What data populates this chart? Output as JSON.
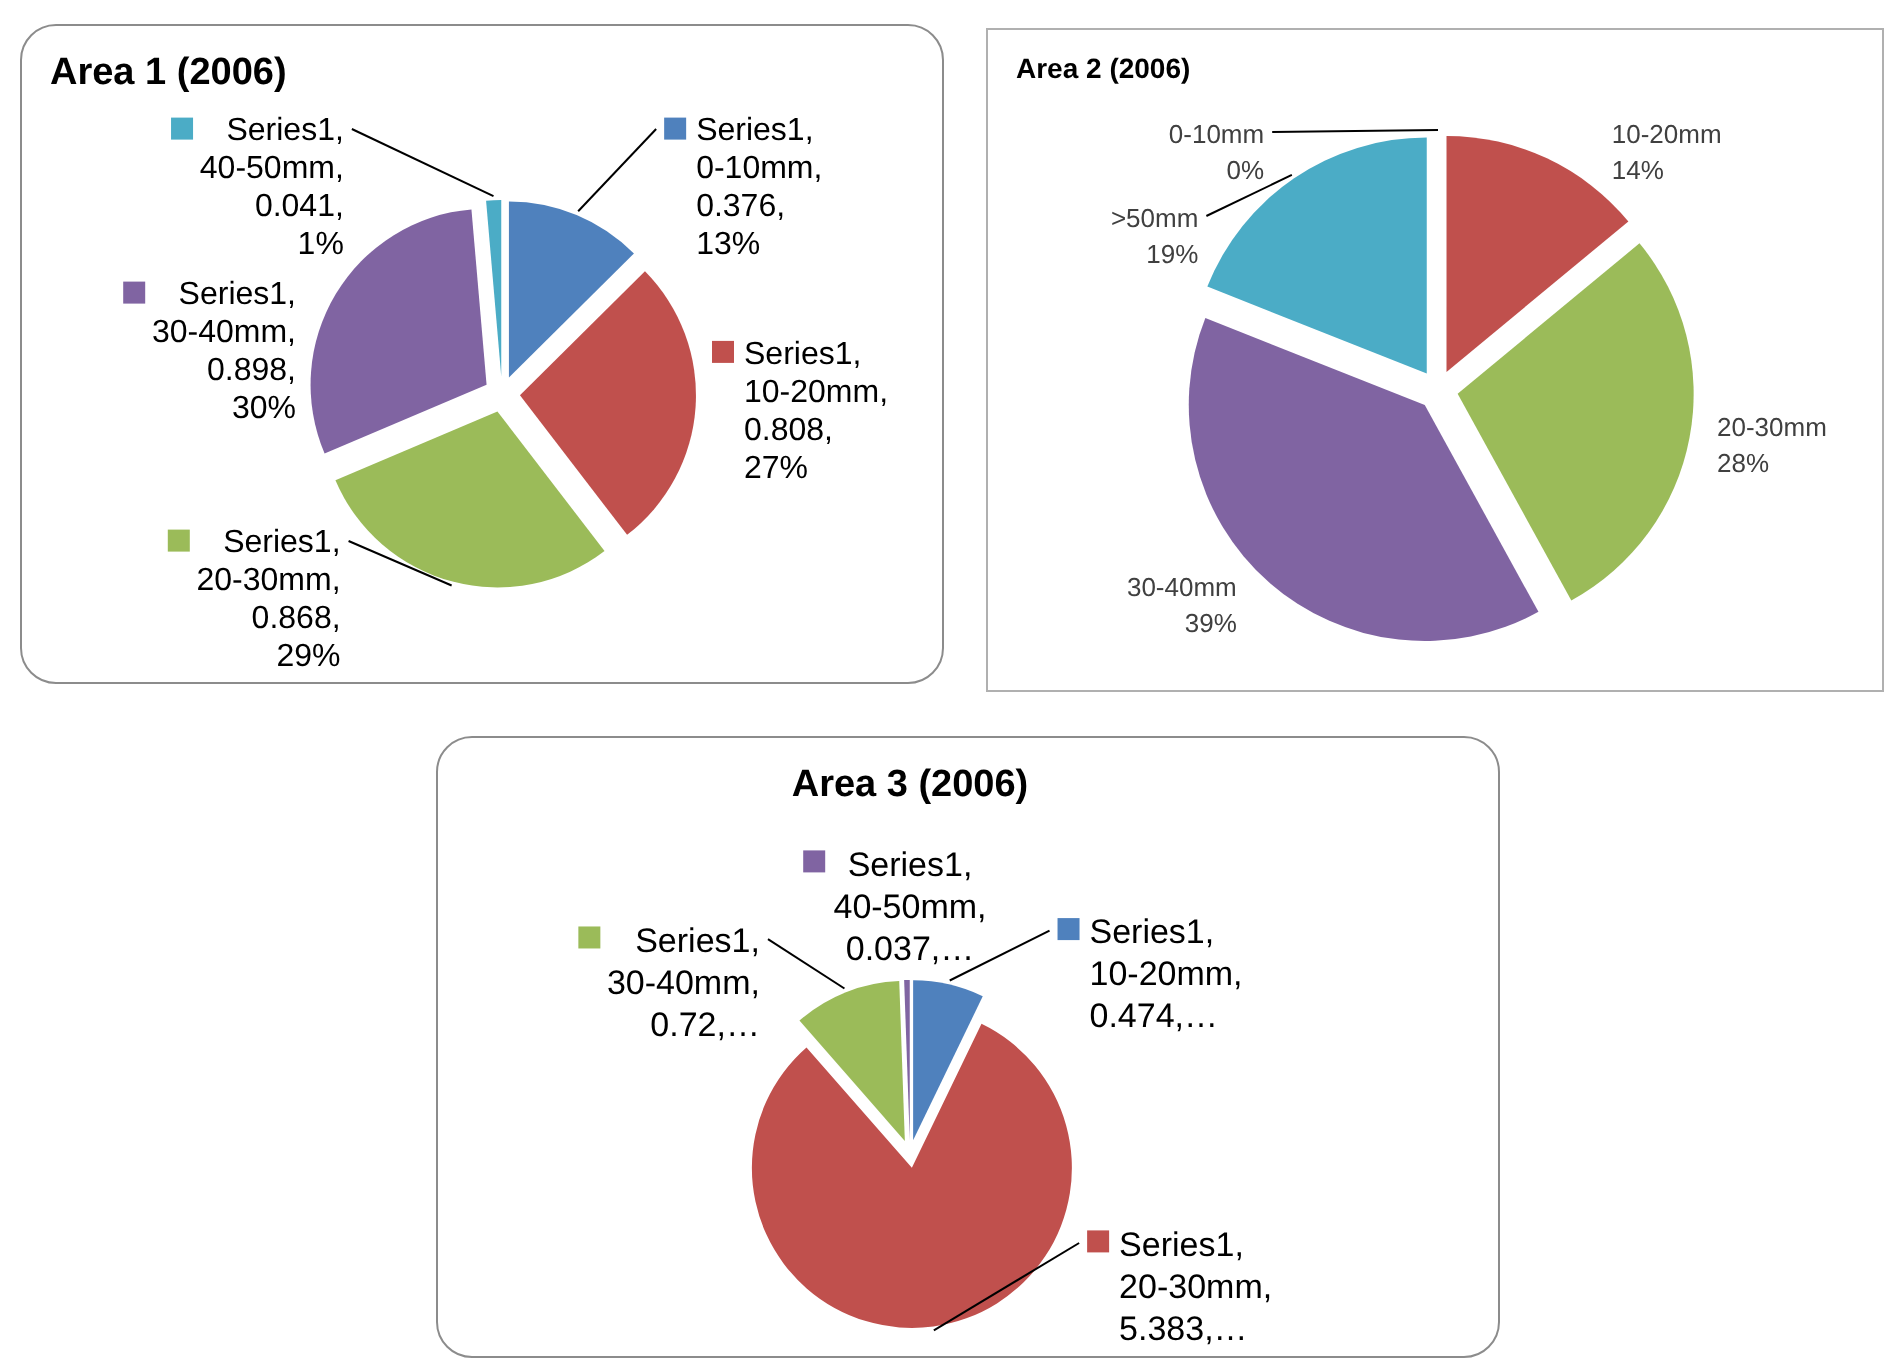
{
  "chart_data": [
    {
      "type": "pie",
      "title": "Area 1 (2006)",
      "categories": [
        null,
        null,
        null,
        null,
        null
      ],
      "colors": [
        "#4f81bd",
        "#c0504d",
        "#9bbb59",
        "#8064a2",
        "#4bacc6"
      ],
      "series": [
        {
          "values": [
            0.376,
            0.808,
            0.868,
            0.898,
            0.041
          ],
          "value_labels": [
            "Series1, 0-10mm, 0.376, 13%",
            "Series1, 10-20mm, 0.808, 27%",
            "Series1, 20-30mm, 0.868, 29%",
            "Series1, 30-40mm, 0.898, 30%",
            "Series1, 40-50mm, 0.041, 1%"
          ]
        }
      ]
    },
    {
      "type": "pie",
      "title": "Area 2 (2006)",
      "categories": [
        "0-10mm",
        "10-20mm",
        "20-30mm",
        "30-40mm",
        ">50mm"
      ],
      "colors": [
        "#4f81bd",
        "#c0504d",
        "#9bbb59",
        "#8064a2",
        "#4bacc6"
      ],
      "series": [
        {
          "values": [
            0,
            14,
            28,
            39,
            19
          ],
          "value_labels": [
            "0%",
            "14%",
            "28%",
            "39%",
            "19%"
          ]
        }
      ]
    },
    {
      "type": "pie",
      "title": "Area 3 (2006)",
      "categories": [
        null,
        null,
        null,
        null
      ],
      "colors": [
        "#4f81bd",
        "#c0504d",
        "#9bbb59",
        "#8064a2"
      ],
      "series": [
        {
          "values": [
            0.474,
            5.383,
            0.72,
            0.037
          ],
          "value_labels": [
            "Series1, 10-20mm, 0.474,…",
            "Series1, 20-30mm, 5.383,…",
            "Series1, 30-40mm, 0.72,…",
            "Series1, 40-50mm, 0.037,…"
          ]
        }
      ]
    }
  ]
}
